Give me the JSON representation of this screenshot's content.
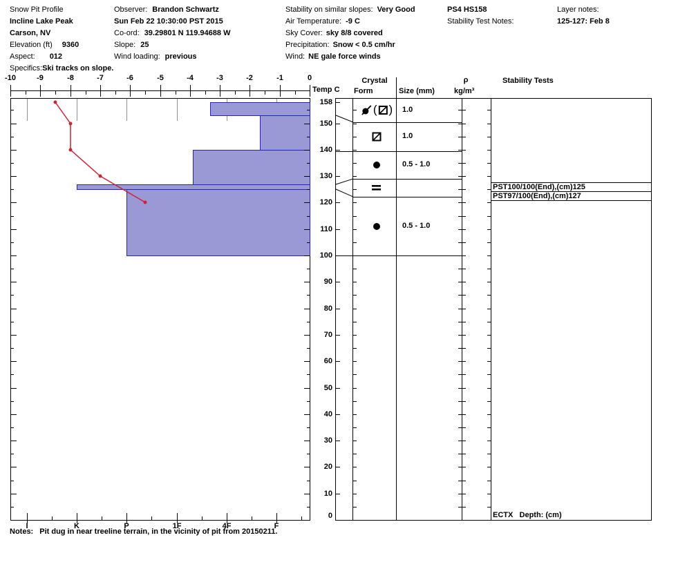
{
  "header": {
    "title": "Snow Pit Profile",
    "location": "Incline Lake Peak",
    "city": "Carson, NV",
    "elevation_label": "Elevation (ft)",
    "elevation": "9360",
    "aspect_label": "Aspect:",
    "aspect": "012",
    "specifics_label": "Specifics:",
    "specifics": "Ski tracks on slope.",
    "observer_label": "Observer:",
    "observer": "Brandon Schwartz",
    "datetime": "Sun Feb 22 10:30:00 PST 2015",
    "coord_label": "Co-ord:",
    "coord": "39.29801 N 119.94688 W",
    "slope_label": "Slope:",
    "slope": "25",
    "wind_loading_label": "Wind loading:",
    "wind_loading": "previous",
    "stability_slopes_label": "Stability on similar slopes:",
    "stability_slopes": "Very Good",
    "air_temp_label": "Air Temperature:",
    "air_temp": "-9 C",
    "sky_label": "Sky Cover:",
    "sky": "sky 8/8 covered",
    "precip_label": "Precipitation:",
    "precip": "Snow < 0.5 cm/hr",
    "wind_label": "Wind:",
    "wind": "NE gale force winds",
    "pit_code": "PS4 HS158",
    "stability_notes_label": "Stability Test Notes:",
    "layer_notes_label": "Layer notes:",
    "layer_notes": "125-127: Feb 8"
  },
  "panel": {
    "temp": "Temp C",
    "crystal": "Crystal",
    "form": "Form",
    "size": "Size (mm)",
    "rho": "ρ",
    "rho_unit": "kg/m³",
    "stability": "Stability Tests"
  },
  "footer": {
    "notes_label": "Notes:",
    "notes": "Pit dug in near treeline terrain, in the vicinity of pit from 20150211."
  },
  "colors": {
    "bar_fill": "#9a99d6",
    "bar_border": "#2323c8",
    "temp_line": "#cc2233",
    "grid_gray": "#8f8f8f"
  },
  "chart_data": {
    "type": "bar",
    "subtype": "snow-pit-hardness-profile-with-temperature-line",
    "title": "Snow Pit Profile",
    "temp_axis": {
      "label": "Temp C",
      "min": -10,
      "max": 0,
      "major_ticks": [
        -10,
        -9,
        -8,
        -7,
        -6,
        -5,
        -4,
        -3,
        -2,
        -1,
        0
      ]
    },
    "depth_axis": {
      "unit": "cm",
      "surface_cm": 158,
      "labels": [
        158,
        150,
        140,
        130,
        120,
        110,
        100,
        90,
        80,
        70,
        60,
        50,
        40,
        30,
        20,
        10,
        0
      ]
    },
    "hardness_axis": {
      "labels": [
        "I",
        "K",
        "P",
        "1F",
        "4F",
        "F"
      ]
    },
    "temperature_profile_c": [
      {
        "depth_cm": 158,
        "temp_c": -8.5
      },
      {
        "depth_cm": 150,
        "temp_c": -8.0
      },
      {
        "depth_cm": 140,
        "temp_c": -8.0
      },
      {
        "depth_cm": 130,
        "temp_c": -7.0
      },
      {
        "depth_cm": 120,
        "temp_c": -5.5
      }
    ],
    "layers": [
      {
        "from_cm": 158,
        "to_cm": 153,
        "hardness": "4F",
        "hardness_value": 3.67,
        "grain_symbols": [
          "df",
          "(",
          "slash-square",
          ")"
        ],
        "size_mm": "1.0"
      },
      {
        "from_cm": 153,
        "to_cm": 140,
        "hardness": "F-",
        "hardness_value": 4.67,
        "grain_symbols": [
          "slash-square"
        ],
        "size_mm": "1.0"
      },
      {
        "from_cm": 140,
        "to_cm": 127,
        "hardness": "1F",
        "hardness_value": 3.33,
        "grain_symbols": [
          "dot"
        ],
        "size_mm": "0.5 - 1.0"
      },
      {
        "from_cm": 127,
        "to_cm": 125,
        "hardness": "K",
        "hardness_value": 1.0,
        "grain_symbols": [
          "eq"
        ],
        "size_mm": ""
      },
      {
        "from_cm": 125,
        "to_cm": 100,
        "hardness": "P",
        "hardness_value": 2.0,
        "grain_symbols": [
          "dot"
        ],
        "size_mm": "0.5 - 1.0"
      }
    ],
    "stability_tests": [
      {
        "text": "PST100/100(End),(cm)125",
        "depth_cm": 125
      },
      {
        "text": "PST97/100(End),(cm)127",
        "depth_cm": 127
      },
      {
        "text": "ECTX   Depth: (cm)"
      }
    ]
  }
}
